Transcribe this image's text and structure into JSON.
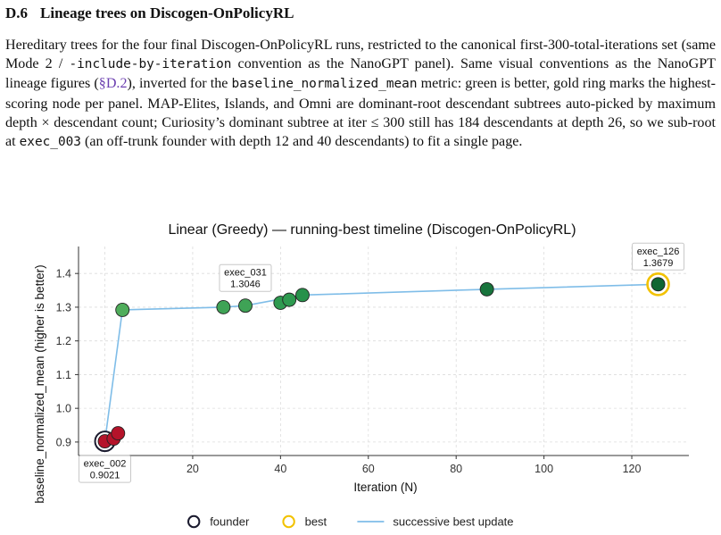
{
  "section": {
    "number": "D.6",
    "title": "Lineage trees on Discogen-OnPolicyRL"
  },
  "paragraph": {
    "p1": "Hereditary trees for the four final Discogen-OnPolicyRL runs, restricted to the canonical first-300-total-iterations set (same Mode 2 / ",
    "code1": "-include-by-iteration",
    "p2": " convention as the NanoGPT panel).  Same visual conventions as the NanoGPT lineage figures (",
    "ref": "§D.2",
    "p3": "), inverted for the ",
    "code2": "baseline_normalized_mean",
    "p4": " metric: green is better, gold ring marks the highest-scoring node per panel. MAP-Elites, Islands, and Omni are dominant-root descendant subtrees auto-picked by maximum depth × descendant count; Curiosity’s dominant subtree at iter ≤ 300 still has 184 descendants at depth 26, so we sub-root at ",
    "code3": "exec_003",
    "p5": " (an off-trunk founder with depth 12 and 40 descendants) to fit a single page."
  },
  "chart_data": {
    "type": "scatter",
    "title": "Linear (Greedy) — running-best timeline (Discogen-OnPolicyRL)",
    "xlabel": "Iteration (N)",
    "ylabel": "baseline_normalized_mean (higher is better)",
    "xlim": [
      -6,
      133
    ],
    "ylim": [
      0.86,
      1.48
    ],
    "xticks": [
      20,
      40,
      60,
      80,
      100,
      120
    ],
    "yticks": [
      0.9,
      1.0,
      1.1,
      1.2,
      1.3,
      1.4
    ],
    "grid": true,
    "points": [
      {
        "x": 0,
        "y": 0.9021,
        "color": "#b5132a"
      },
      {
        "x": 2,
        "y": 0.91,
        "color": "#b5132a"
      },
      {
        "x": 3,
        "y": 0.926,
        "color": "#b5132a"
      },
      {
        "x": 4,
        "y": 1.292,
        "color": "#4fad5b"
      },
      {
        "x": 27,
        "y": 1.3,
        "color": "#3fa356"
      },
      {
        "x": 32,
        "y": 1.3046,
        "color": "#3fa356"
      },
      {
        "x": 40,
        "y": 1.313,
        "color": "#2e9a50"
      },
      {
        "x": 42,
        "y": 1.322,
        "color": "#2e9a50"
      },
      {
        "x": 45,
        "y": 1.336,
        "color": "#27914a"
      },
      {
        "x": 87,
        "y": 1.353,
        "color": "#18743c"
      },
      {
        "x": 126,
        "y": 1.3679,
        "color": "#0f6633"
      }
    ],
    "best_path": [
      [
        0,
        0.9021
      ],
      [
        4,
        1.292
      ],
      [
        27,
        1.3
      ],
      [
        32,
        1.3046
      ],
      [
        45,
        1.336
      ],
      [
        87,
        1.353
      ],
      [
        126,
        1.3679
      ]
    ],
    "founder": {
      "x": 0,
      "y": 0.9021
    },
    "best": {
      "x": 126,
      "y": 1.3679
    },
    "annotations": [
      {
        "name": "exec_002",
        "value": "0.9021",
        "x": 0,
        "y": 0.9021,
        "place": "below"
      },
      {
        "name": "exec_031",
        "value": "1.3046",
        "x": 32,
        "y": 1.3046,
        "place": "above"
      },
      {
        "name": "exec_126",
        "value": "1.3679",
        "x": 126,
        "y": 1.3679,
        "place": "above"
      }
    ],
    "legend": {
      "placement": "bottom-center",
      "items": [
        {
          "label": "founder",
          "kind": "ring",
          "color": "#1a1a2e"
        },
        {
          "label": "best",
          "kind": "ring",
          "color": "#f2c200"
        },
        {
          "label": "successive best update",
          "kind": "line",
          "color": "#7fbde8"
        }
      ]
    }
  }
}
